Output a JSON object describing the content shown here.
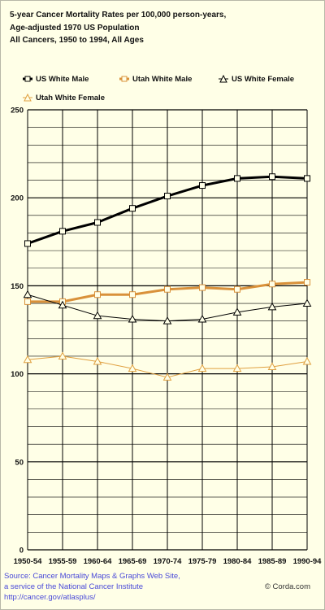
{
  "title_lines": [
    "5-year Cancer Mortality Rates per 100,000 person-years,",
    "Age-adjusted 1970 US Population",
    "All Cancers, 1950 to 1994, All Ages"
  ],
  "legend": [
    {
      "label": "US White Male",
      "marker": "square",
      "color": "#000000"
    },
    {
      "label": "Utah White Male",
      "marker": "square",
      "color": "#d9913a"
    },
    {
      "label": "US White Female",
      "marker": "triangle",
      "color": "#000000"
    },
    {
      "label": "Utah White Female",
      "marker": "triangle",
      "color": "#e0a040"
    }
  ],
  "footer": {
    "source": "Source:  Cancer Mortality Maps & Graphs Web Site,",
    "service": "a service of the National Cancer Institute",
    "url": "http://cancer.gov/atlasplus/",
    "credit": "© Corda.com"
  },
  "colors": {
    "background": "#ffffe7",
    "grid": "#000000",
    "link": "#4a4ad8"
  },
  "chart_data": {
    "type": "line",
    "title": "5-year Cancer Mortality Rates per 100,000 person-years, Age-adjusted 1970 US Population, All Cancers, 1950 to 1994, All Ages",
    "xlabel": "",
    "ylabel": "",
    "categories": [
      "1950-54",
      "1955-59",
      "1960-64",
      "1965-69",
      "1970-74",
      "1975-79",
      "1980-84",
      "1985-89",
      "1990-94"
    ],
    "ylim": [
      0,
      250
    ],
    "yticks": [
      0,
      50,
      100,
      150,
      200,
      250
    ],
    "grid": true,
    "legend_position": "top",
    "series": [
      {
        "name": "US White Male",
        "marker": "square",
        "color": "#000000",
        "width": 3,
        "values": [
          174,
          181,
          186,
          194,
          201,
          207,
          211,
          212,
          211
        ]
      },
      {
        "name": "Utah White Male",
        "marker": "square",
        "color": "#d9913a",
        "width": 3,
        "values": [
          141,
          141,
          145,
          145,
          148,
          149,
          148,
          151,
          152
        ]
      },
      {
        "name": "US White Female",
        "marker": "triangle",
        "color": "#000000",
        "width": 1,
        "values": [
          145,
          139,
          133,
          131,
          130,
          131,
          135,
          138,
          140
        ]
      },
      {
        "name": "Utah White Female",
        "marker": "triangle",
        "color": "#e0a040",
        "width": 1,
        "values": [
          108,
          110,
          107,
          103,
          98,
          103,
          103,
          104,
          107
        ]
      }
    ]
  }
}
